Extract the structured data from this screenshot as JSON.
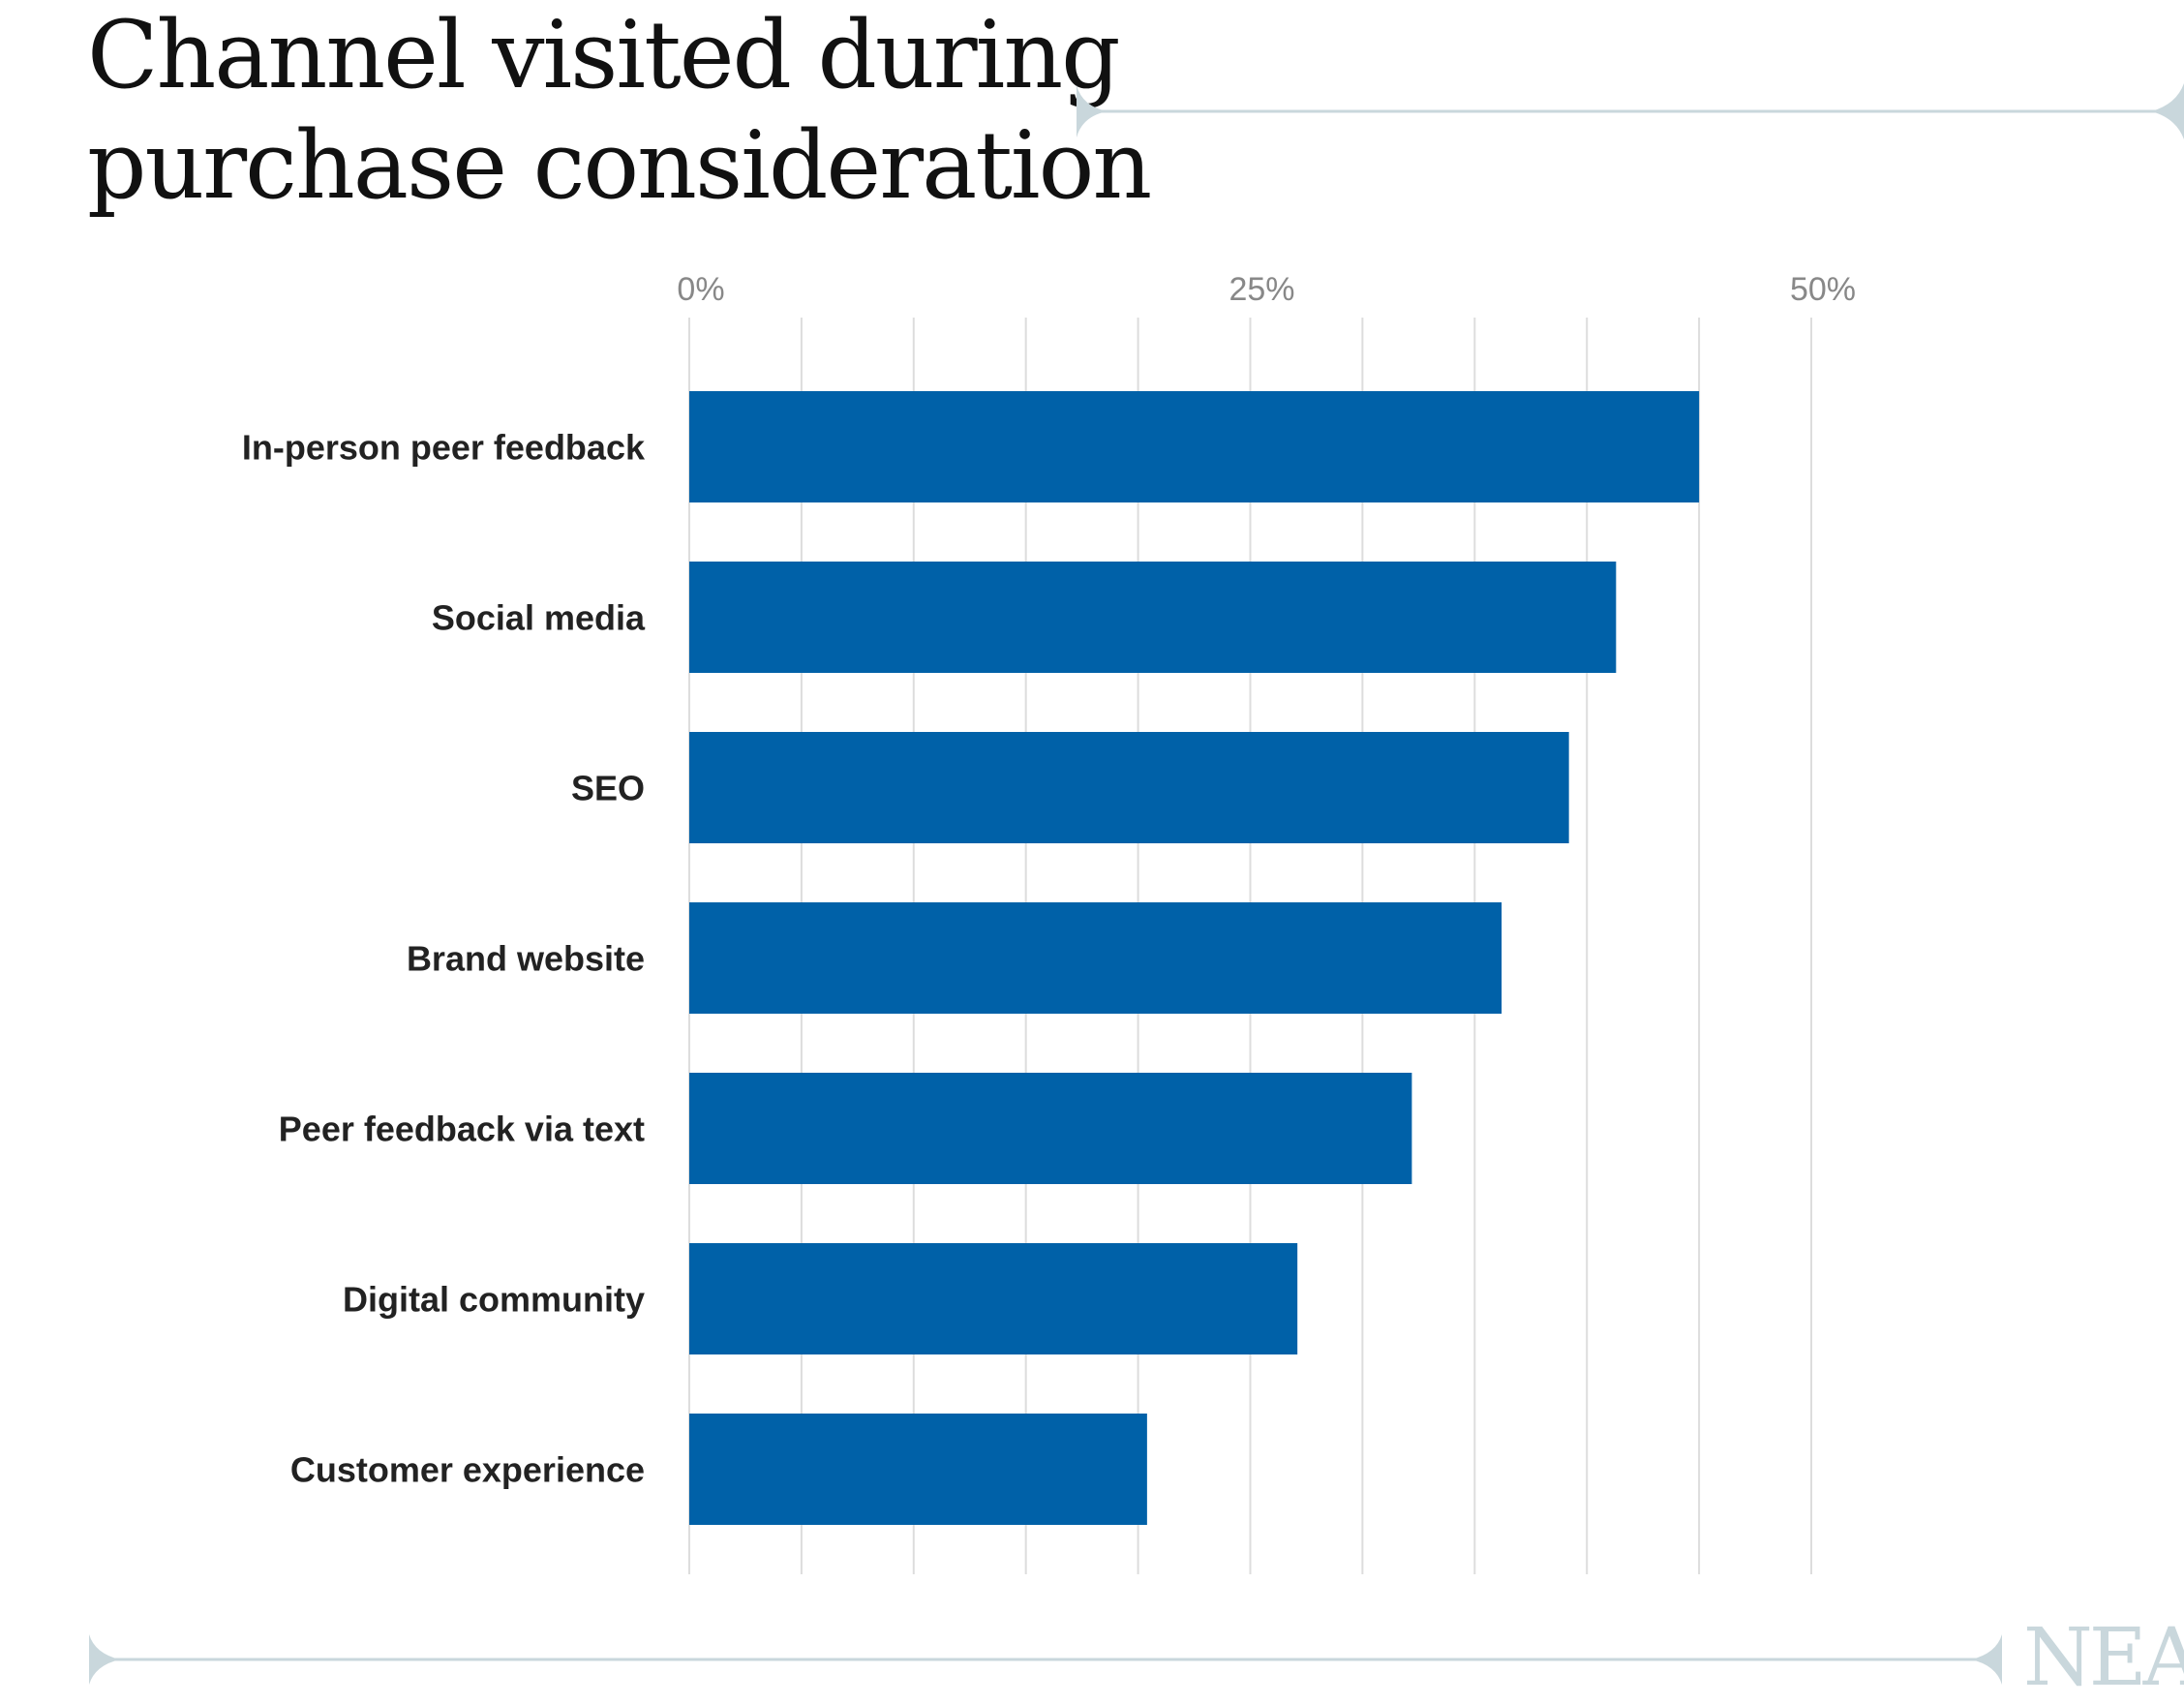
{
  "title_lines": [
    "Channel visited during",
    "purchase consideration"
  ],
  "colors": {
    "bar": "#0061a8",
    "grid": "#dddddd",
    "decoration": "#c9d7dc"
  },
  "logo": "NEA",
  "chart_data": {
    "type": "bar",
    "orientation": "horizontal",
    "title": "Channel visited during purchase consideration",
    "categories": [
      "In-person peer feedback",
      "Social media",
      "SEO",
      "Brand website",
      "Peer feedback via text",
      "Digital community",
      "Customer experience"
    ],
    "values": [
      45,
      41.3,
      39.2,
      36.2,
      32.2,
      27.1,
      20.4
    ],
    "x_tick_labels": [
      "0%",
      "25%",
      "50%"
    ],
    "x_ticks": [
      0,
      25,
      50
    ],
    "xlim": [
      0,
      50
    ],
    "minor_grid_step": 5,
    "grid": true,
    "axis_position": "top"
  }
}
